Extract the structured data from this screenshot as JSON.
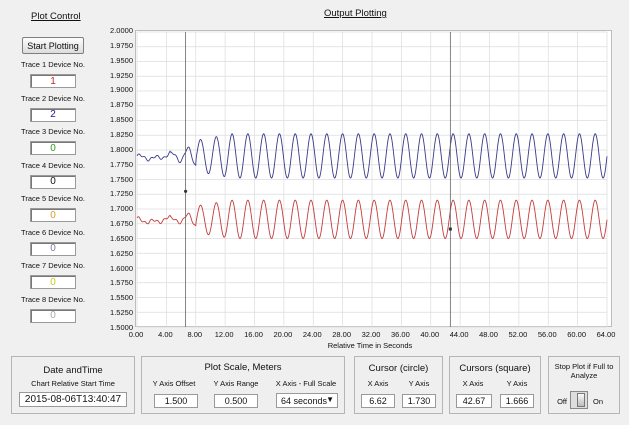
{
  "header": {
    "plot_control_title": "Plot Control",
    "output_plotting_title": "Output Plotting"
  },
  "left_panel": {
    "start_button_label": "Start Plotting",
    "traces": [
      {
        "label": "Trace 1 Device No.",
        "value": "1",
        "color": "#cc2222"
      },
      {
        "label": "Trace 2 Device No.",
        "value": "2",
        "color": "#1a1a99"
      },
      {
        "label": "Trace 3 Device No.",
        "value": "0",
        "color": "#2a9a2a"
      },
      {
        "label": "Trace 4 Device No.",
        "value": "0",
        "color": "#111111"
      },
      {
        "label": "Trace 5 Device No.",
        "value": "0",
        "color": "#d9a020"
      },
      {
        "label": "Trace 6 Device No.",
        "value": "0",
        "color": "#7a7aa0"
      },
      {
        "label": "Trace 7 Device No.",
        "value": "0",
        "color": "#c8c820"
      },
      {
        "label": "Trace 8 Device No.",
        "value": "0",
        "color": "#aaaaaa"
      }
    ]
  },
  "chart_data": {
    "type": "line",
    "title": "Output Plotting",
    "xlabel": "Relative Time in Seconds",
    "ylabel": "",
    "xlim": [
      0,
      64
    ],
    "ylim": [
      1.5,
      2.0
    ],
    "x_ticks": [
      "0.00",
      "4.00",
      "8.00",
      "12.00",
      "16.00",
      "20.00",
      "24.00",
      "28.00",
      "32.00",
      "36.00",
      "40.00",
      "44.00",
      "48.00",
      "52.00",
      "56.00",
      "60.00",
      "64.00"
    ],
    "y_ticks": [
      "2.0000",
      "1.9750",
      "1.9500",
      "1.9250",
      "1.9000",
      "1.8750",
      "1.8500",
      "1.8250",
      "1.8000",
      "1.7750",
      "1.7500",
      "1.7250",
      "1.7000",
      "1.6750",
      "1.6500",
      "1.6250",
      "1.6000",
      "1.5750",
      "1.5500",
      "1.5250",
      "1.5000"
    ],
    "grid": true,
    "series": [
      {
        "name": "",
        "color": "#3a3a8a",
        "baseline": 1.79,
        "amplitude": 0.0375,
        "period": 2.15,
        "settle_start": 8.0
      },
      {
        "name": "",
        "color": "#c43c3c",
        "baseline": 1.6825,
        "amplitude": 0.0325,
        "period": 2.15,
        "settle_start": 8.0
      }
    ],
    "cursors": {
      "circle": {
        "x": 6.62,
        "y": 1.73
      },
      "square": {
        "x": 42.67,
        "y": 1.666
      }
    }
  },
  "bottom": {
    "datetime": {
      "title": "Date andTime",
      "sub_label": "Chart Relative Start Time",
      "value": "2015-08-06T13:40:47"
    },
    "scale": {
      "title": "Plot Scale,  Meters",
      "offset_label": "Y Axis Offset",
      "offset_value": "1.500",
      "range_label": "Y Axis Range",
      "range_value": "0.500",
      "full_label": "X Axis - Full Scale",
      "full_value": "64 seconds"
    },
    "cursor_circle": {
      "title": "Cursor (circle)",
      "x_label": "X Axis",
      "y_label": "Y Axis",
      "x_value": "6.62",
      "y_value": "1.730"
    },
    "cursor_square": {
      "title": "Cursors (square)",
      "x_label": "X Axis",
      "y_label": "Y Axis",
      "x_value": "42.67",
      "y_value": "1.666"
    },
    "stop": {
      "title": "Stop Plot if Full to Analyze",
      "off_label": "Off",
      "on_label": "On"
    }
  }
}
